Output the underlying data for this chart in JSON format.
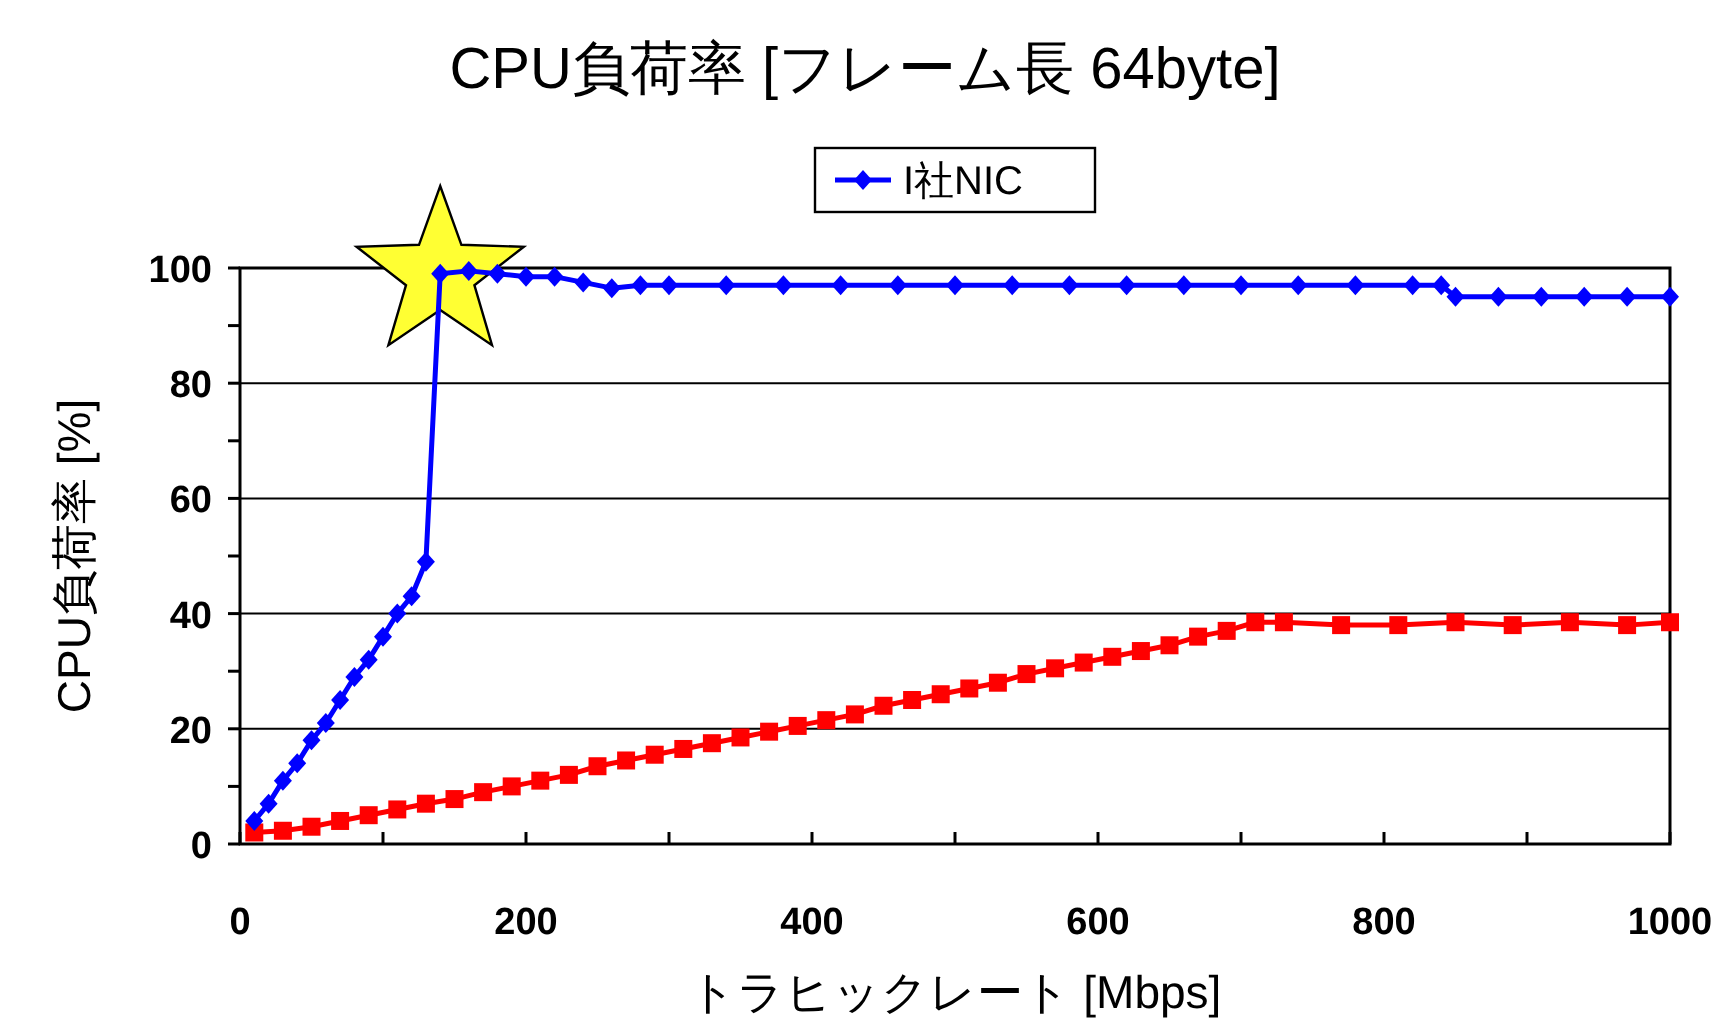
{
  "chart_data": {
    "type": "line",
    "title": "CPU負荷率 [フレーム長 64byte]",
    "xlabel": "トラヒックレート [Mbps]",
    "ylabel": "CPU負荷率 [%]",
    "xlim": [
      0,
      1000
    ],
    "xticks": [
      0,
      {
        "value": 100,
        "label": null
      },
      200,
      {
        "value": 300,
        "label": null
      },
      400,
      {
        "value": 500,
        "label": null
      },
      600,
      {
        "value": 700,
        "label": null
      },
      800,
      {
        "value": 900,
        "label": null
      },
      1000
    ],
    "ylim": [
      0,
      100
    ],
    "yticks": [
      0,
      {
        "value": 10,
        "label": null
      },
      20,
      {
        "value": 30,
        "label": null
      },
      40,
      {
        "value": 50,
        "label": null
      },
      60,
      {
        "value": 70,
        "label": null
      },
      80,
      {
        "value": 90,
        "label": null
      },
      100
    ],
    "grid": "y",
    "legend": "top",
    "line_style": "solid",
    "series": [
      {
        "color": "#ff0000",
        "marker": "square",
        "x": [
          10,
          30,
          50,
          70,
          90,
          110,
          130,
          150,
          170,
          190,
          210,
          230,
          250,
          270,
          290,
          310,
          330,
          350,
          370,
          390,
          410,
          430,
          450,
          470,
          490,
          510,
          530,
          550,
          570,
          590,
          610,
          630,
          650,
          670,
          690,
          710,
          730,
          770,
          810,
          850,
          890,
          930,
          970,
          1000
        ],
        "values": [
          2,
          2.3,
          3,
          4,
          5,
          6,
          7,
          7.8,
          9,
          10,
          11,
          12,
          13.5,
          14.5,
          15.5,
          16.5,
          17.5,
          18.5,
          19.5,
          20.5,
          21.5,
          22.5,
          24,
          25,
          26,
          27,
          28,
          29.5,
          30.5,
          31.5,
          32.5,
          33.5,
          34.5,
          36,
          37,
          38.5,
          38.5,
          38,
          38,
          38.5,
          38,
          38.5,
          38,
          38.5
        ]
      },
      {
        "name": "I社NIC",
        "color": "#0000ff",
        "marker": "diamond",
        "x": [
          10,
          20,
          30,
          40,
          50,
          60,
          70,
          80,
          90,
          100,
          110,
          120,
          130,
          140,
          160,
          180,
          200,
          220,
          240,
          260,
          280,
          300,
          340,
          380,
          420,
          460,
          500,
          540,
          580,
          620,
          660,
          700,
          740,
          780,
          820,
          840,
          850,
          880,
          910,
          940,
          970,
          1000
        ],
        "values": [
          4,
          7,
          11,
          14,
          18,
          21,
          25,
          29,
          32,
          36,
          40,
          43,
          49,
          99,
          99.5,
          99,
          98.5,
          98.5,
          97.5,
          96.5,
          97,
          97,
          97,
          97,
          97,
          97,
          97,
          97,
          97,
          97,
          97,
          97,
          97,
          97,
          97,
          97,
          95,
          95,
          95,
          95,
          95,
          95
        ]
      }
    ]
  }
}
